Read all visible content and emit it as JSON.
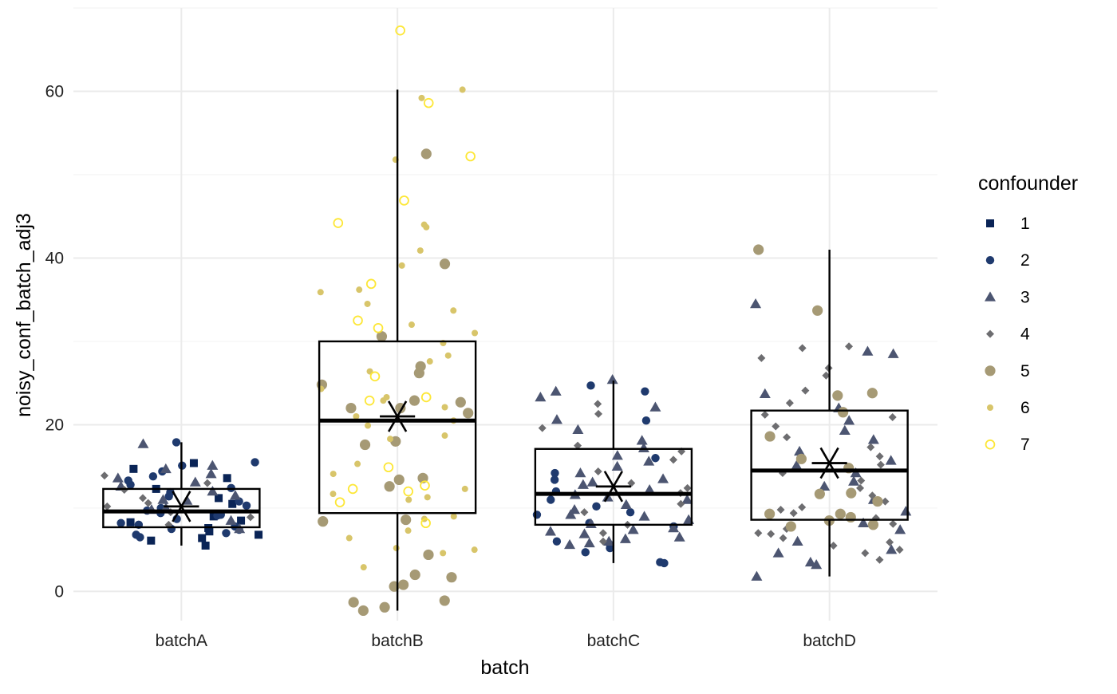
{
  "chart_data": {
    "type": "box",
    "title": "",
    "xlabel": "batch",
    "ylabel": "noisy_conf_batch_adj3",
    "categories": [
      "batchA",
      "batchB",
      "batchC",
      "batchD"
    ],
    "ylim": [
      -3.5,
      70
    ],
    "yticks": [
      0,
      20,
      40,
      60
    ],
    "grid": true,
    "legend": {
      "title": "confounder",
      "position": "right",
      "items": [
        {
          "label": "1",
          "color": "#0a2456",
          "shape": "square"
        },
        {
          "label": "2",
          "color": "#1f3a6e",
          "shape": "circle"
        },
        {
          "label": "3",
          "color": "#4c5571",
          "shape": "triangle"
        },
        {
          "label": "4",
          "color": "#6d6d70",
          "shape": "diamond"
        },
        {
          "label": "5",
          "color": "#a69a75",
          "shape": "circle-large"
        },
        {
          "label": "6",
          "color": "#d8c56a",
          "shape": "circle-small"
        },
        {
          "label": "7",
          "color": "#fde737",
          "shape": "circle-open"
        }
      ]
    },
    "boxes": [
      {
        "category": "batchA",
        "whisker_low": 5.5,
        "q1": 7.7,
        "median": 9.6,
        "q3": 12.3,
        "whisker_high": 17.9,
        "mean": 10.2
      },
      {
        "category": "batchB",
        "whisker_low": -2.3,
        "q1": 9.4,
        "median": 20.5,
        "q3": 30.0,
        "whisker_high": 60.2,
        "mean": 21.0
      },
      {
        "category": "batchC",
        "whisker_low": 3.4,
        "q1": 8.0,
        "median": 11.7,
        "q3": 17.1,
        "whisker_high": 25.3,
        "mean": 12.6
      },
      {
        "category": "batchD",
        "whisker_low": 1.8,
        "q1": 8.6,
        "median": 14.5,
        "q3": 21.7,
        "whisker_high": 41.0,
        "mean": 15.4
      }
    ],
    "points": [
      {
        "category": "batchA",
        "confounder": "1",
        "values": [
          5.5,
          6.1,
          6.4,
          6.8,
          7.2,
          7.6,
          8.3,
          8.5,
          9.0,
          10.5,
          11.2,
          12.3,
          13.6,
          14.7,
          15.4
        ]
      },
      {
        "category": "batchA",
        "confounder": "2",
        "values": [
          6.5,
          6.8,
          7.0,
          7.4,
          7.8,
          8.2,
          8.7,
          9.1,
          9.4,
          9.7,
          10.0,
          10.3,
          10.8,
          11.4,
          11.9,
          12.4,
          12.8,
          13.3,
          13.8,
          14.4,
          15.1,
          15.5,
          17.9,
          9.2,
          8.0,
          7.5
        ]
      },
      {
        "category": "batchA",
        "confounder": "3",
        "values": [
          7.5,
          8.5,
          9.8,
          10.9,
          11.5,
          12.0,
          12.6,
          13.1,
          13.6,
          14.1,
          14.7,
          15.1,
          17.7,
          11.0,
          10.0
        ]
      },
      {
        "category": "batchA",
        "confounder": "4",
        "values": [
          8.0,
          8.9,
          9.5,
          10.2,
          11.2,
          12.2,
          13.0,
          13.9,
          10.6
        ]
      },
      {
        "category": "batchB",
        "confounder": "5",
        "values": [
          -2.3,
          -1.9,
          -1.3,
          -1.1,
          0.6,
          0.8,
          1.7,
          2.0,
          4.4,
          8.4,
          8.6,
          12.6,
          13.4,
          13.6,
          17.6,
          18.0,
          21.4,
          22.0,
          22.0,
          22.7,
          22.9,
          24.8,
          26.2,
          27.0,
          30.6,
          39.3,
          52.5
        ]
      },
      {
        "category": "batchB",
        "confounder": "6",
        "values": [
          2.9,
          4.6,
          5.0,
          5.2,
          6.4,
          7.3,
          8.7,
          9.0,
          11.0,
          11.3,
          11.7,
          12.3,
          14.1,
          15.3,
          18.3,
          18.7,
          19.9,
          20.5,
          21.0,
          22.1,
          22.9,
          23.3,
          24.3,
          26.4,
          27.6,
          28.3,
          29.8,
          31.0,
          32.0,
          33.7,
          34.5,
          35.9,
          36.2,
          39.1,
          40.9,
          43.7,
          44.0,
          51.8,
          59.2,
          60.2
        ]
      },
      {
        "category": "batchB",
        "confounder": "7",
        "values": [
          8.2,
          10.7,
          12.0,
          12.3,
          12.7,
          14.9,
          22.9,
          23.3,
          25.8,
          31.6,
          32.5,
          36.9,
          44.2,
          46.9,
          52.2,
          58.6,
          67.3
        ]
      },
      {
        "category": "batchC",
        "confounder": "2",
        "values": [
          3.4,
          3.5,
          4.7,
          5.2,
          5.6,
          6.0,
          7.8,
          8.2,
          9.2,
          9.5,
          10.2,
          11.0,
          12.0,
          13.4,
          14.2,
          16.0,
          20.5,
          24.0,
          24.7
        ]
      },
      {
        "category": "batchC",
        "confounder": "3",
        "values": [
          5.6,
          6.0,
          6.5,
          6.9,
          7.2,
          7.6,
          8.1,
          8.6,
          9.2,
          9.8,
          10.4,
          11.0,
          11.6,
          12.2,
          12.8,
          13.5,
          14.2,
          15.0,
          15.6,
          16.3,
          17.2,
          18.1,
          19.4,
          20.6,
          22.1,
          23.3,
          24.0,
          25.4,
          11.3,
          13.1,
          9.0,
          7.4,
          6.3,
          5.8
        ]
      },
      {
        "category": "batchC",
        "confounder": "4",
        "values": [
          6.0,
          7.0,
          8.0,
          9.5,
          10.5,
          11.8,
          13.0,
          14.4,
          15.8,
          17.5,
          19.6,
          21.3,
          22.5,
          16.8,
          12.4
        ]
      },
      {
        "category": "batchD",
        "confounder": "3",
        "values": [
          1.8,
          3.2,
          3.5,
          4.6,
          5.0,
          6.0,
          7.4,
          8.2,
          9.6,
          11.0,
          12.6,
          14.2,
          15.7,
          16.8,
          18.2,
          19.3,
          20.5,
          22.0,
          23.7,
          28.5,
          28.8,
          34.5,
          13.2,
          15.1
        ]
      },
      {
        "category": "batchD",
        "confounder": "4",
        "values": [
          3.8,
          4.6,
          5.0,
          5.5,
          5.9,
          6.4,
          6.9,
          7.5,
          8.1,
          8.8,
          9.4,
          10.1,
          10.8,
          11.5,
          12.4,
          13.3,
          14.2,
          15.2,
          16.2,
          17.3,
          18.5,
          19.8,
          21.2,
          22.6,
          24.1,
          25.9,
          26.8,
          28.0,
          29.2,
          29.4,
          20.9,
          9.8,
          7.0
        ]
      },
      {
        "category": "batchD",
        "confounder": "5",
        "values": [
          7.8,
          8.0,
          8.5,
          8.9,
          9.3,
          9.3,
          10.8,
          11.7,
          11.8,
          14.8,
          15.9,
          18.6,
          21.5,
          23.5,
          23.8,
          33.7,
          41.0
        ]
      }
    ]
  }
}
